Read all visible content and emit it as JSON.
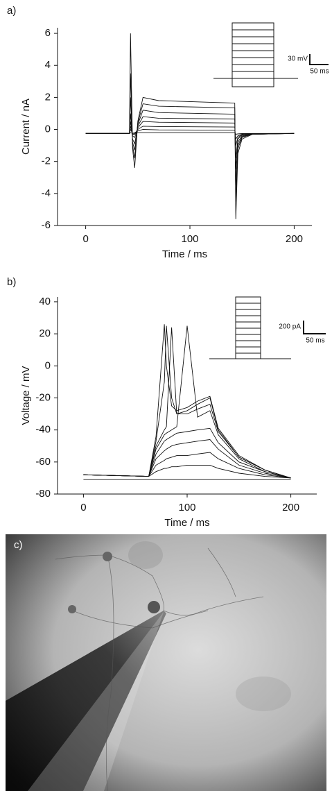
{
  "panel_labels": [
    "a)",
    "b)",
    "c)"
  ],
  "chart_data": [
    {
      "type": "line",
      "xlabel": "Time / ms",
      "ylabel": "Current / nA",
      "xlim": [
        -27,
        217
      ],
      "ylim": [
        -6,
        6.35
      ],
      "xticks": [
        0,
        100,
        200
      ],
      "yticks": [
        -6,
        -4,
        -2,
        0,
        2,
        4,
        6
      ],
      "annotations": [
        "30 mV",
        "50 ms"
      ],
      "x": [
        0,
        42,
        43,
        45,
        47,
        50,
        55,
        70,
        143,
        144,
        146,
        150,
        160,
        200
      ],
      "series": [
        {
          "color": "#111111",
          "values": [
            -0.25,
            -0.25,
            6.0,
            -1.2,
            -2.4,
            0.5,
            2.0,
            1.8,
            1.65,
            -5.6,
            -1.5,
            -0.6,
            -0.3,
            -0.25
          ]
        },
        {
          "color": "#111111",
          "values": [
            -0.25,
            -0.25,
            3.5,
            -1.0,
            -1.8,
            0.4,
            1.6,
            1.45,
            1.35,
            -4.5,
            -1.2,
            -0.5,
            -0.3,
            -0.25
          ]
        },
        {
          "color": "#111111",
          "values": [
            -0.25,
            -0.25,
            2.0,
            -0.8,
            -1.3,
            0.3,
            1.2,
            1.05,
            0.95,
            -3.5,
            -1.0,
            -0.45,
            -0.3,
            -0.25
          ]
        },
        {
          "color": "#111111",
          "values": [
            -0.25,
            -0.25,
            1.0,
            -0.6,
            -0.9,
            0.2,
            0.8,
            0.7,
            0.65,
            -2.5,
            -0.8,
            -0.4,
            -0.3,
            -0.25
          ]
        },
        {
          "color": "#111111",
          "values": [
            -0.25,
            -0.25,
            0.5,
            -0.4,
            -0.5,
            0.1,
            0.5,
            0.45,
            0.4,
            -1.8,
            -0.6,
            -0.35,
            -0.28,
            -0.25
          ]
        },
        {
          "color": "#111111",
          "values": [
            -0.25,
            -0.25,
            0.2,
            -0.3,
            -0.3,
            0.0,
            0.2,
            0.18,
            0.15,
            -1.0,
            -0.5,
            -0.3,
            -0.27,
            -0.25
          ]
        },
        {
          "color": "#111111",
          "values": [
            -0.25,
            -0.25,
            0.0,
            -0.25,
            -0.2,
            -0.1,
            0.0,
            -0.03,
            -0.05,
            -0.6,
            -0.4,
            -0.3,
            -0.26,
            -0.25
          ]
        },
        {
          "color": "#111111",
          "values": [
            -0.25,
            -0.25,
            -0.2,
            -0.25,
            -0.25,
            -0.2,
            -0.2,
            -0.2,
            -0.2,
            -0.3,
            -0.28,
            -0.26,
            -0.25,
            -0.25
          ]
        }
      ]
    },
    {
      "type": "line",
      "xlabel": "Time / ms",
      "ylabel": "Voltage / mV",
      "xlim": [
        -25,
        225
      ],
      "ylim": [
        -80,
        43
      ],
      "xticks": [
        0,
        100,
        200
      ],
      "yticks": [
        -80,
        -60,
        -40,
        -20,
        0,
        20,
        40
      ],
      "annotations": [
        "200 pA",
        "50 ms"
      ],
      "x": [
        0,
        63,
        70,
        78,
        80,
        85,
        90,
        100,
        110,
        122,
        130,
        150,
        175,
        200
      ],
      "series": [
        {
          "color": "#111111",
          "values": [
            -71,
            -71,
            -71,
            -71,
            -71,
            -71,
            -71,
            -71,
            -71,
            -71,
            -71,
            -71,
            -71,
            -71
          ]
        },
        {
          "color": "#111111",
          "values": [
            -68,
            -69,
            -66,
            -64,
            -64,
            -63,
            -63,
            -62,
            -62,
            -62,
            -64,
            -67,
            -69,
            -70
          ]
        },
        {
          "color": "#111111",
          "values": [
            -68,
            -69,
            -62,
            -59,
            -58,
            -57,
            -56,
            -56,
            -55,
            -54,
            -58,
            -64,
            -68,
            -70
          ]
        },
        {
          "color": "#111111",
          "values": [
            -68,
            -69,
            -58,
            -53,
            -52,
            -50,
            -49,
            -48,
            -47,
            -46,
            -52,
            -62,
            -67,
            -70
          ]
        },
        {
          "color": "#111111",
          "values": [
            -68,
            -69,
            -55,
            -47,
            -46,
            -44,
            -42,
            -41,
            -40,
            -39,
            -48,
            -60,
            -66,
            -70
          ]
        },
        {
          "color": "#111111",
          "values": [
            -68,
            -69,
            -52,
            -43,
            -42,
            -40,
            -38,
            25,
            -32,
            -28,
            -43,
            -58,
            -66,
            -70
          ]
        },
        {
          "color": "#111111",
          "values": [
            -68,
            -69,
            -50,
            -40,
            -38,
            24,
            -30,
            -30,
            -27,
            -24,
            -41,
            -57,
            -65,
            -70
          ]
        },
        {
          "color": "#111111",
          "values": [
            -68,
            -69,
            -47,
            -10,
            25,
            -20,
            -30,
            -28,
            -24,
            -20,
            -40,
            -57,
            -65,
            -70
          ]
        },
        {
          "color": "#111111",
          "values": [
            -68,
            -69,
            -44,
            26,
            0,
            -25,
            -28,
            -26,
            -22,
            -19,
            -39,
            -56,
            -65,
            -70
          ]
        }
      ]
    }
  ]
}
